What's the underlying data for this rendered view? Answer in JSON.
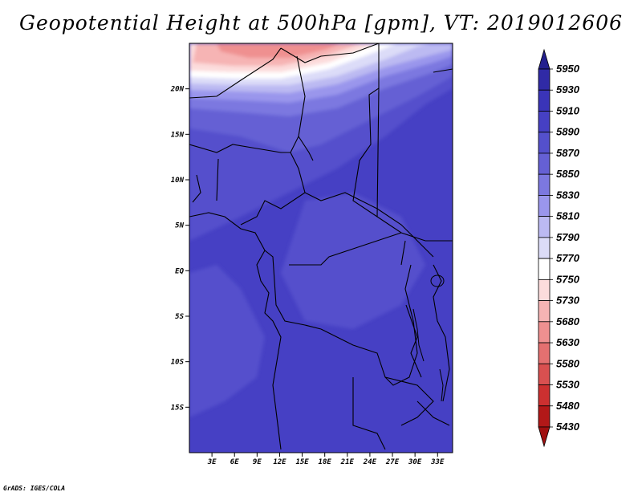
{
  "title": "Geopotential Height at 500hPa [gpm], VT: 2019012606",
  "credit": "GrADS: IGES/COLA",
  "map": {
    "lon_range": [
      0,
      35
    ],
    "lat_range": [
      -20,
      25
    ],
    "lat_ticks": [
      {
        "label": "20N",
        "value": 20
      },
      {
        "label": "15N",
        "value": 15
      },
      {
        "label": "10N",
        "value": 10
      },
      {
        "label": "5N",
        "value": 5
      },
      {
        "label": "EQ",
        "value": 0
      },
      {
        "label": "5S",
        "value": -5
      },
      {
        "label": "10S",
        "value": -10
      },
      {
        "label": "15S",
        "value": -15
      }
    ],
    "lon_ticks": [
      {
        "label": "3E",
        "value": 3
      },
      {
        "label": "6E",
        "value": 6
      },
      {
        "label": "9E",
        "value": 9
      },
      {
        "label": "12E",
        "value": 12
      },
      {
        "label": "15E",
        "value": 15
      },
      {
        "label": "18E",
        "value": 18
      },
      {
        "label": "21E",
        "value": 21
      },
      {
        "label": "24E",
        "value": 24
      },
      {
        "label": "27E",
        "value": 27
      },
      {
        "label": "30E",
        "value": 30
      },
      {
        "label": "33E",
        "value": 33
      }
    ]
  },
  "colorbar": {
    "levels": [
      "5950",
      "5930",
      "5910",
      "5890",
      "5870",
      "5850",
      "5830",
      "5810",
      "5790",
      "5770",
      "5750",
      "5730",
      "5680",
      "5630",
      "5580",
      "5530",
      "5480",
      "5430"
    ],
    "colors": [
      "#24208e",
      "#302aa6",
      "#3a34b8",
      "#4640c4",
      "#5450cc",
      "#6560d4",
      "#7c78e0",
      "#9a96ec",
      "#bcbaf2",
      "#dcdcf8",
      "#ffffff",
      "#fcdcdc",
      "#f6b4b4",
      "#ef9090",
      "#e47070",
      "#d95050",
      "#cc3030",
      "#b21818",
      "#a01010"
    ]
  }
}
